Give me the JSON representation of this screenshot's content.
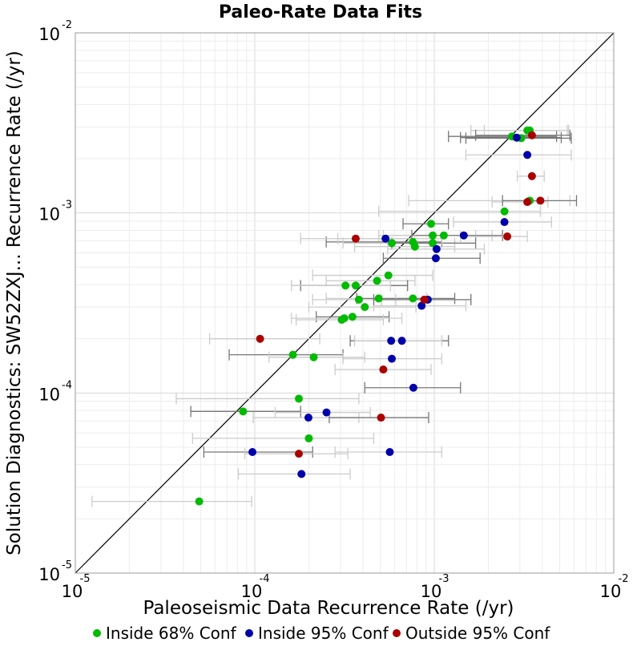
{
  "chart_data": {
    "type": "scatter",
    "title": "Paleo-Rate Data Fits",
    "xlabel": "Paleoseismic Data Recurrence Rate (/yr)",
    "ylabel": "Solution Diagnostics: SW52ZXJ... Recurrence Rate (/yr)",
    "x_scale": "log",
    "y_scale": "log",
    "xlim": [
      1e-05,
      0.01
    ],
    "ylim": [
      1e-05,
      0.01
    ],
    "grid": true,
    "reference_line": "y = x",
    "legend_position": "bottom",
    "x_ticks": [
      {
        "base": "10",
        "exp": "-5"
      },
      {
        "base": "10",
        "exp": "-4"
      },
      {
        "base": "10",
        "exp": "-3"
      },
      {
        "base": "10",
        "exp": "-2"
      }
    ],
    "y_ticks": [
      {
        "base": "10",
        "exp": "-5"
      },
      {
        "base": "10",
        "exp": "-4"
      },
      {
        "base": "10",
        "exp": "-3"
      },
      {
        "base": "10",
        "exp": "-2"
      }
    ],
    "colors": {
      "Inside 68% Conf": "#00bb00",
      "Inside 95% Conf": "#0000aa",
      "Outside 95% Conf": "#aa0000",
      "error_bar_dark": "#777777",
      "error_bar_light": "#cccccc"
    },
    "series": [
      {
        "name": "Inside 68% Conf",
        "points": [
          {
            "x": 0.00271,
            "y": 0.00266,
            "xerr": [
              0.0012,
              0.0048
            ]
          },
          {
            "x": 0.0033,
            "y": 0.00287,
            "xerr": [
              0.0016,
              0.0055
            ]
          },
          {
            "x": 0.0034,
            "y": 0.00287,
            "xerr": [
              0.0019,
              0.0056
            ]
          },
          {
            "x": 0.00305,
            "y": 0.0026,
            "xerr": [
              0.0015,
              0.0058
            ]
          },
          {
            "x": 0.0034,
            "y": 0.00117,
            "xerr": [
              0.00072,
              0.0057
            ]
          },
          {
            "x": 0.00246,
            "y": 0.00102,
            "xerr": [
              0.00049,
              0.0039
            ]
          },
          {
            "x": 0.00096,
            "y": 0.00087,
            "xerr": [
              0.00067,
              0.0012
            ]
          },
          {
            "x": 0.00098,
            "y": 0.00075,
            "xerr": [
              0.00049,
              0.0017
            ]
          },
          {
            "x": 0.00113,
            "y": 0.00075,
            "xerr": [
              0.00052,
              0.0021
            ]
          },
          {
            "x": 0.00076,
            "y": 0.00069,
            "xerr": [
              0.00025,
              0.0011
            ]
          },
          {
            "x": 0.00058,
            "y": 0.00068,
            "xerr": [
              0.00031,
              0.0013
            ]
          },
          {
            "x": 0.00078,
            "y": 0.00065,
            "xerr": [
              0.00036,
              0.0013
            ]
          },
          {
            "x": 0.00098,
            "y": 0.00068,
            "xerr": [
              0.00058,
              0.0017
            ]
          },
          {
            "x": 0.000555,
            "y": 0.00045,
            "xerr": [
              0.00021,
              0.00098
            ]
          },
          {
            "x": 0.00048,
            "y": 0.00042,
            "xerr": [
              0.00025,
              0.00078
            ]
          },
          {
            "x": 0.000365,
            "y": 0.000395,
            "xerr": [
              0.00018,
              0.00071
            ]
          },
          {
            "x": 0.00032,
            "y": 0.000395,
            "xerr": [
              0.00016,
              0.00057
            ]
          },
          {
            "x": 0.00049,
            "y": 0.000335,
            "xerr": [
              0.00025,
              0.00091
            ]
          },
          {
            "x": 0.00076,
            "y": 0.000335,
            "xerr": [
              0.00037,
              0.0013
            ]
          },
          {
            "x": 0.00038,
            "y": 0.00033,
            "xerr": [
              0.00021,
              0.00061
            ]
          },
          {
            "x": 0.00041,
            "y": 0.0003,
            "xerr": [
              0.0002,
              0.00079
            ]
          },
          {
            "x": 0.00035,
            "y": 0.000265,
            "xerr": [
              0.00022,
              0.00056
            ]
          },
          {
            "x": 0.000315,
            "y": 0.00026,
            "xerr": [
              0.00016,
              0.00066
            ]
          },
          {
            "x": 0.000305,
            "y": 0.000255,
            "xerr": [
              0.00017,
              0.00052
            ]
          },
          {
            "x": 0.000163,
            "y": 0.000163,
            "xerr": [
              7.2e-05,
              0.00031
            ]
          },
          {
            "x": 0.000213,
            "y": 0.000158,
            "xerr": [
              0.00012,
              0.00041
            ]
          },
          {
            "x": 0.000176,
            "y": 9.3e-05,
            "xerr": [
              3.65e-05,
              0.00038
            ]
          },
          {
            "x": 8.6e-05,
            "y": 7.9e-05,
            "xerr": [
              4.4e-05,
              0.00018
            ]
          },
          {
            "x": 0.0002,
            "y": 5.6e-05,
            "xerr": [
              4.5e-05,
              0.00046
            ]
          },
          {
            "x": 4.9e-05,
            "y": 2.5e-05,
            "xerr": [
              1.24e-05,
              9.6e-05
            ]
          }
        ]
      },
      {
        "name": "Inside 95% Conf",
        "points": [
          {
            "x": 0.00288,
            "y": 0.00262,
            "xerr": [
              0.0014,
              0.0051
            ]
          },
          {
            "x": 0.0033,
            "y": 0.0021,
            "xerr": [
              0.0015,
              0.0058
            ]
          },
          {
            "x": 0.00246,
            "y": 0.00089,
            "xerr": [
              0.00128,
              0.0045
            ]
          },
          {
            "x": 0.00146,
            "y": 0.00075,
            "xerr": [
              0.00075,
              0.0024
            ]
          },
          {
            "x": 0.000535,
            "y": 0.00072,
            "xerr": [
              0.00029,
              0.0011
            ]
          },
          {
            "x": 0.00103,
            "y": 0.00063,
            "xerr": [
              0.00055,
              0.0019
            ]
          },
          {
            "x": 0.00102,
            "y": 0.00056,
            "xerr": [
              0.00052,
              0.0018
            ]
          },
          {
            "x": 0.00092,
            "y": 0.00033,
            "xerr": [
              0.00051,
              0.0016
            ]
          },
          {
            "x": 0.00085,
            "y": 0.000305,
            "xerr": [
              0.00046,
              0.0015
            ]
          },
          {
            "x": 0.00066,
            "y": 0.000195,
            "xerr": [
              0.00034,
              0.0012
            ]
          },
          {
            "x": 0.000575,
            "y": 0.000195,
            "xerr": [
              0.00036,
              0.0011
            ]
          },
          {
            "x": 0.00058,
            "y": 0.000155,
            "xerr": [
              0.00031,
              0.0011
            ]
          },
          {
            "x": 0.000765,
            "y": 0.000107,
            "xerr": [
              0.00041,
              0.0014
            ]
          },
          {
            "x": 0.000251,
            "y": 7.8e-05,
            "xerr": [
              0.00013,
              0.00044
            ]
          },
          {
            "x": 0.000199,
            "y": 7.3e-05,
            "xerr": [
              9.8e-05,
              0.00038
            ]
          },
          {
            "x": 9.7e-05,
            "y": 4.7e-05,
            "xerr": [
              5.2e-05,
              0.00021
            ]
          },
          {
            "x": 0.000565,
            "y": 4.7e-05,
            "xerr": [
              0.00028,
              0.0011
            ]
          },
          {
            "x": 0.000182,
            "y": 3.55e-05,
            "xerr": [
              8.1e-05,
              0.00034
            ]
          }
        ]
      },
      {
        "name": "Outside 95% Conf",
        "points": [
          {
            "x": 0.0035,
            "y": 0.0027,
            "xerr": [
              0.0017,
              0.0057
            ]
          },
          {
            "x": 0.0035,
            "y": 0.0016,
            "xerr": [
              0.0029,
              0.0041
            ]
          },
          {
            "x": 0.0033,
            "y": 0.00115,
            "xerr": [
              0.0021,
              0.0043
            ]
          },
          {
            "x": 0.0039,
            "y": 0.00117,
            "xerr": [
              0.0024,
              0.0062
            ]
          },
          {
            "x": 0.00255,
            "y": 0.00074,
            "xerr": [
              0.0014,
              0.0033
            ]
          },
          {
            "x": 0.000365,
            "y": 0.00072,
            "xerr": [
              0.00018,
              0.00078
            ]
          },
          {
            "x": 0.00088,
            "y": 0.00033,
            "xerr": [
              0.00046,
              0.0016
            ]
          },
          {
            "x": 0.000107,
            "y": 0.0002,
            "xerr": [
              5.6e-05,
              0.00023
            ]
          },
          {
            "x": 0.00052,
            "y": 0.000135,
            "xerr": [
              0.00028,
              0.00096
            ]
          },
          {
            "x": 0.000505,
            "y": 7.3e-05,
            "xerr": [
              0.00026,
              0.00093
            ]
          },
          {
            "x": 0.000176,
            "y": 4.6e-05,
            "xerr": [
              8.8e-05,
              0.00033
            ]
          }
        ]
      }
    ]
  }
}
